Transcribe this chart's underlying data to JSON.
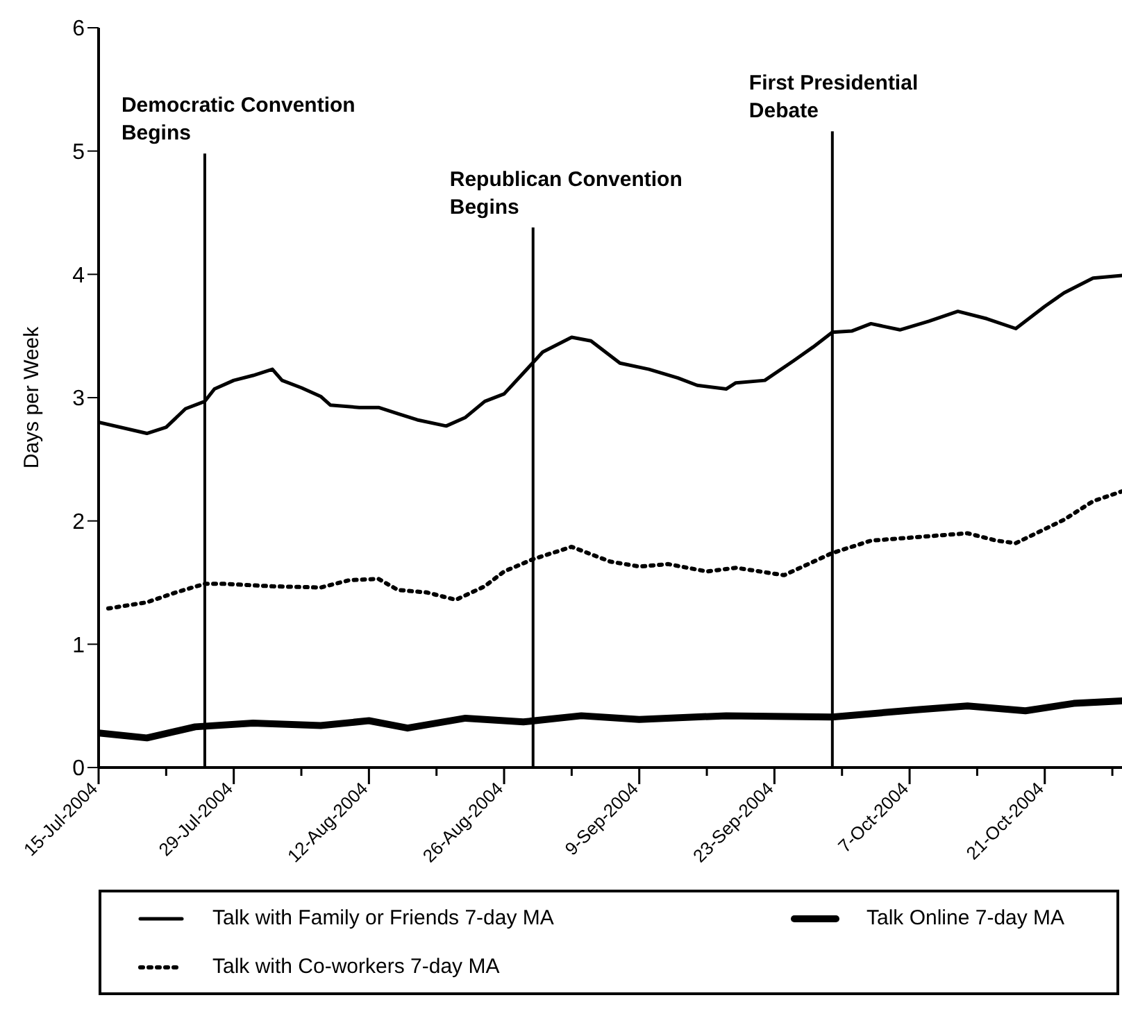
{
  "chart_data": {
    "type": "line",
    "ylabel": "Days per Week",
    "ylim": [
      0,
      6
    ],
    "yticks": [
      0,
      1,
      2,
      3,
      4,
      5,
      6
    ],
    "xlim": [
      "2004-07-15",
      "2004-10-29"
    ],
    "xticks": [
      {
        "value": "2004-07-15",
        "label": "15-Jul-2004"
      },
      {
        "value": "2004-07-22",
        "label": null
      },
      {
        "value": "2004-07-29",
        "label": "29-Jul-2004"
      },
      {
        "value": "2004-08-05",
        "label": null
      },
      {
        "value": "2004-08-12",
        "label": "12-Aug-2004"
      },
      {
        "value": "2004-08-19",
        "label": null
      },
      {
        "value": "2004-08-26",
        "label": "26-Aug-2004"
      },
      {
        "value": "2004-09-02",
        "label": null
      },
      {
        "value": "2004-09-09",
        "label": "9-Sep-2004"
      },
      {
        "value": "2004-09-16",
        "label": null
      },
      {
        "value": "2004-09-23",
        "label": "23-Sep-2004"
      },
      {
        "value": "2004-09-30",
        "label": null
      },
      {
        "value": "2004-10-07",
        "label": "7-Oct-2004"
      },
      {
        "value": "2004-10-14",
        "label": null
      },
      {
        "value": "2004-10-21",
        "label": "21-Oct-2004"
      },
      {
        "value": "2004-10-28",
        "label": null
      }
    ],
    "legend": "bottom",
    "marker": "none",
    "series": [
      {
        "name": "Talk with Family or Friends 7-day MA",
        "color": "#000000",
        "line_style": "solid",
        "x": [
          "2004-07-15",
          "2004-07-20",
          "2004-07-22",
          "2004-07-24",
          "2004-07-26",
          "2004-07-27",
          "2004-07-29",
          "2004-07-31",
          "2004-08-02",
          "2004-08-03",
          "2004-08-05",
          "2004-08-07",
          "2004-08-08",
          "2004-08-11",
          "2004-08-13",
          "2004-08-15",
          "2004-08-17",
          "2004-08-20",
          "2004-08-22",
          "2004-08-24",
          "2004-08-26",
          "2004-08-28",
          "2004-08-30",
          "2004-09-02",
          "2004-09-04",
          "2004-09-07",
          "2004-09-10",
          "2004-09-13",
          "2004-09-15",
          "2004-09-18",
          "2004-09-19",
          "2004-09-22",
          "2004-09-25",
          "2004-09-27",
          "2004-09-29",
          "2004-10-01",
          "2004-10-03",
          "2004-10-06",
          "2004-10-09",
          "2004-10-12",
          "2004-10-15",
          "2004-10-18",
          "2004-10-21",
          "2004-10-23",
          "2004-10-26",
          "2004-10-29"
        ],
        "values": [
          2.8,
          2.71,
          2.76,
          2.91,
          2.97,
          3.07,
          3.14,
          3.18,
          3.23,
          3.14,
          3.08,
          3.01,
          2.94,
          2.92,
          2.92,
          2.87,
          2.82,
          2.77,
          2.84,
          2.97,
          3.03,
          3.2,
          3.37,
          3.49,
          3.46,
          3.28,
          3.23,
          3.16,
          3.1,
          3.07,
          3.12,
          3.14,
          3.3,
          3.41,
          3.53,
          3.54,
          3.6,
          3.55,
          3.62,
          3.7,
          3.64,
          3.56,
          3.74,
          3.85,
          3.97,
          3.99
        ]
      },
      {
        "name": "Talk with Co-workers 7-day MA",
        "color": "#000000",
        "line_style": "dotted",
        "x": [
          "2004-07-16",
          "2004-07-20",
          "2004-07-23",
          "2004-07-26",
          "2004-07-28",
          "2004-08-02",
          "2004-08-07",
          "2004-08-10",
          "2004-08-13",
          "2004-08-15",
          "2004-08-18",
          "2004-08-21",
          "2004-08-24",
          "2004-08-26",
          "2004-08-29",
          "2004-09-02",
          "2004-09-06",
          "2004-09-09",
          "2004-09-12",
          "2004-09-16",
          "2004-09-19",
          "2004-09-24",
          "2004-09-29",
          "2004-10-03",
          "2004-10-08",
          "2004-10-13",
          "2004-10-16",
          "2004-10-18",
          "2004-10-23",
          "2004-10-26",
          "2004-10-29"
        ],
        "values": [
          1.29,
          1.34,
          1.42,
          1.49,
          1.49,
          1.47,
          1.46,
          1.52,
          1.53,
          1.44,
          1.42,
          1.36,
          1.47,
          1.59,
          1.69,
          1.79,
          1.67,
          1.63,
          1.65,
          1.59,
          1.62,
          1.56,
          1.74,
          1.84,
          1.87,
          1.9,
          1.84,
          1.82,
          2.01,
          2.16,
          2.24
        ]
      },
      {
        "name": "Talk Online 7-day MA",
        "color": "#000000",
        "line_style": "solid",
        "x": [
          "2004-07-15",
          "2004-07-20",
          "2004-07-25",
          "2004-07-31",
          "2004-08-07",
          "2004-08-12",
          "2004-08-16",
          "2004-08-22",
          "2004-08-28",
          "2004-09-03",
          "2004-09-09",
          "2004-09-18",
          "2004-09-29",
          "2004-10-08",
          "2004-10-13",
          "2004-10-19",
          "2004-10-24",
          "2004-10-29"
        ],
        "values": [
          0.28,
          0.24,
          0.33,
          0.36,
          0.34,
          0.38,
          0.32,
          0.4,
          0.37,
          0.42,
          0.39,
          0.42,
          0.41,
          0.47,
          0.5,
          0.46,
          0.52,
          0.54
        ]
      }
    ],
    "ref_lines": [
      {
        "axis": "x",
        "value": "2004-07-26",
        "label": "Democratic Convention\nBegins",
        "color": "#000000"
      },
      {
        "axis": "x",
        "value": "2004-08-29",
        "label": "Republican Convention\nBegins",
        "color": "#000000"
      },
      {
        "axis": "x",
        "value": "2004-09-29",
        "label": "First Presidential\nDebate",
        "color": "#000000"
      }
    ]
  }
}
